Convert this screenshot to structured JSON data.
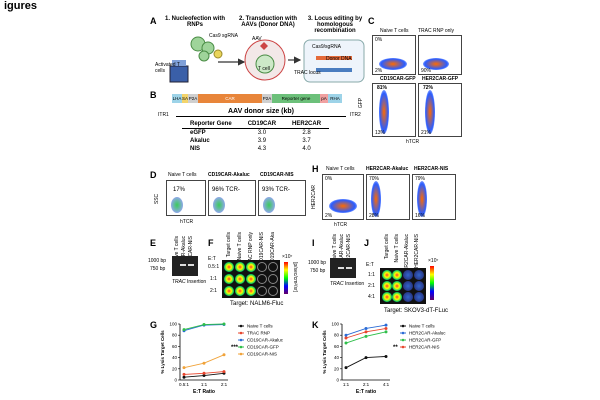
{
  "header": "igures",
  "panels": {
    "A": {
      "label": "A",
      "step1": "1. Nucleofection with RNPs",
      "step2": "2. Transduction with AAVs (Donor DNA)",
      "step3": "3. Locus editing by homologous recombination",
      "cas9": "Cas9 sgRNA",
      "activated": "Activated T cells",
      "aav": "AAV",
      "tcell": "T cell",
      "cas9grna": "Cas9/sgRNA",
      "donor_dna": "Donor DNA",
      "trac_locus": "TRAC locus"
    },
    "B": {
      "label": "B",
      "segments": [
        "LHA",
        "SA",
        "P2A",
        "CAR",
        "P2A",
        "Reporter gene",
        "pA",
        "RHA"
      ],
      "itr1": "ITR1",
      "itr2": "ITR2",
      "title": "AAV donor size (kb)",
      "table": {
        "headers": [
          "Reporter Gene",
          "CD19CAR",
          "HER2CAR"
        ],
        "rows": [
          [
            "eGFP",
            "3.0",
            "2.8"
          ],
          [
            "Akaluc",
            "3.9",
            "3.7"
          ],
          [
            "NIS",
            "4.3",
            "4.0"
          ]
        ]
      }
    },
    "C": {
      "label": "C",
      "plots": [
        {
          "title": "Naive T cells",
          "q_top": "0%",
          "q_bot": "2%"
        },
        {
          "title": "TRAC RNP only",
          "q_top": "",
          "q_bot": "90%"
        },
        {
          "title": "CD19CAR-GFP",
          "q_top": "81%",
          "q_bot": "13%"
        },
        {
          "title": "HER2CAR-GFP",
          "q_top": "72%",
          "q_bot": "21%"
        }
      ],
      "ylabel": "GFP",
      "xlabel": "hTCR"
    },
    "D": {
      "label": "D",
      "plots": [
        {
          "title": "Naive T cells",
          "value": "17%"
        },
        {
          "title": "CD19CAR-Akaluc",
          "value": "96% TCR-"
        },
        {
          "title": "CD19CAR-NIS",
          "value": "93% TCR-"
        }
      ],
      "ylabel": "SSC",
      "xlabel": "hTCR"
    },
    "H": {
      "label": "H",
      "plots": [
        {
          "title": "Naive T cells",
          "q_top": "0%",
          "q_bot": "2%"
        },
        {
          "title": "HER2CAR-Akaluc",
          "q_top": "70%",
          "q_bot": "28%"
        },
        {
          "title": "HER2CAR-NIS",
          "q_top": "79%",
          "q_bot": "16%"
        }
      ],
      "ylabel": "HER2CAR",
      "xlabel": "hTCR"
    },
    "E": {
      "label": "E",
      "lanes": [
        "Naive T cells",
        "CD19CAR-Akaluc",
        "CD19CAR-NIS"
      ],
      "ladder": [
        "1000 bp",
        "750 bp"
      ],
      "caption_italic": "TRAC",
      "caption": "Insertion"
    },
    "F": {
      "label": "F",
      "cols": [
        "Target cells",
        "Naive T cells",
        "TRAC RNP only",
        "CD19CAR-NIS",
        "CD19CAR-Aka"
      ],
      "rows_label": "E:T",
      "rows": [
        "0.5:1",
        "1:1",
        "2:1"
      ],
      "scale_top": "×10⁷",
      "scale_unit": "[p/sec/cm²/sr]",
      "target": "Target: NALM6-Fluc"
    },
    "I": {
      "label": "I",
      "lanes": [
        "Naive T cells",
        "HER2CAR-Akaluc",
        "HER2CAR-NIS"
      ],
      "ladder": [
        "1000 bp",
        "750 bp"
      ],
      "caption_italic": "TRAC",
      "caption": "Insertion"
    },
    "J": {
      "label": "J",
      "cols": [
        "Target cells",
        "Naive T cells",
        "HER2CAR-Akaluc",
        "HER2CAR-NIS"
      ],
      "rows_label": "E:T",
      "rows": [
        "1:1",
        "2:1",
        "4:1"
      ],
      "scale_top": "×10⁷",
      "target": "Target: SKOV3-dT-FLuc"
    },
    "G": {
      "label": "G",
      "legend_position": "top-right",
      "significance": "***"
    },
    "K": {
      "label": "K",
      "legend_position": "top-right",
      "significance": "**"
    }
  },
  "chart_data": [
    {
      "type": "line",
      "panel": "G",
      "xlabel": "E:T Ratio",
      "ylabel": "% Lysis Target Cells",
      "categories": [
        "0.5:1",
        "1:1",
        "2:1"
      ],
      "ylim": [
        0,
        100
      ],
      "yticks": [
        0,
        20,
        40,
        60,
        80,
        100
      ],
      "series": [
        {
          "name": "Naive T cells",
          "color": "#111111",
          "values": [
            5,
            8,
            12
          ]
        },
        {
          "name": "TRAC RNP",
          "color": "#e8462e",
          "values": [
            10,
            12,
            15
          ]
        },
        {
          "name": "CD19CAR-Akaluc",
          "color": "#2a6bd6",
          "values": [
            88,
            98,
            99
          ]
        },
        {
          "name": "CD19CAR-GFP",
          "color": "#2fbf4a",
          "values": [
            90,
            99,
            100
          ]
        },
        {
          "name": "CD19CAR-NIS",
          "color": "#f0a33a",
          "values": [
            22,
            30,
            45
          ]
        }
      ]
    },
    {
      "type": "line",
      "panel": "K",
      "xlabel": "E:T ratio",
      "ylabel": "% Lysis Target Cells",
      "categories": [
        "1:1",
        "2:1",
        "4:1"
      ],
      "ylim": [
        0,
        100
      ],
      "yticks": [
        0,
        20,
        40,
        60,
        80,
        100
      ],
      "series": [
        {
          "name": "Naive T cells",
          "color": "#111111",
          "values": [
            22,
            40,
            42
          ]
        },
        {
          "name": "HER2CAR-Akaluc",
          "color": "#2a6bd6",
          "values": [
            80,
            92,
            98
          ]
        },
        {
          "name": "HER2CAR-GFP",
          "color": "#2fbf4a",
          "values": [
            66,
            78,
            86
          ]
        },
        {
          "name": "HER2CAR-NIS",
          "color": "#e8462e",
          "values": [
            75,
            86,
            92
          ]
        }
      ]
    }
  ]
}
